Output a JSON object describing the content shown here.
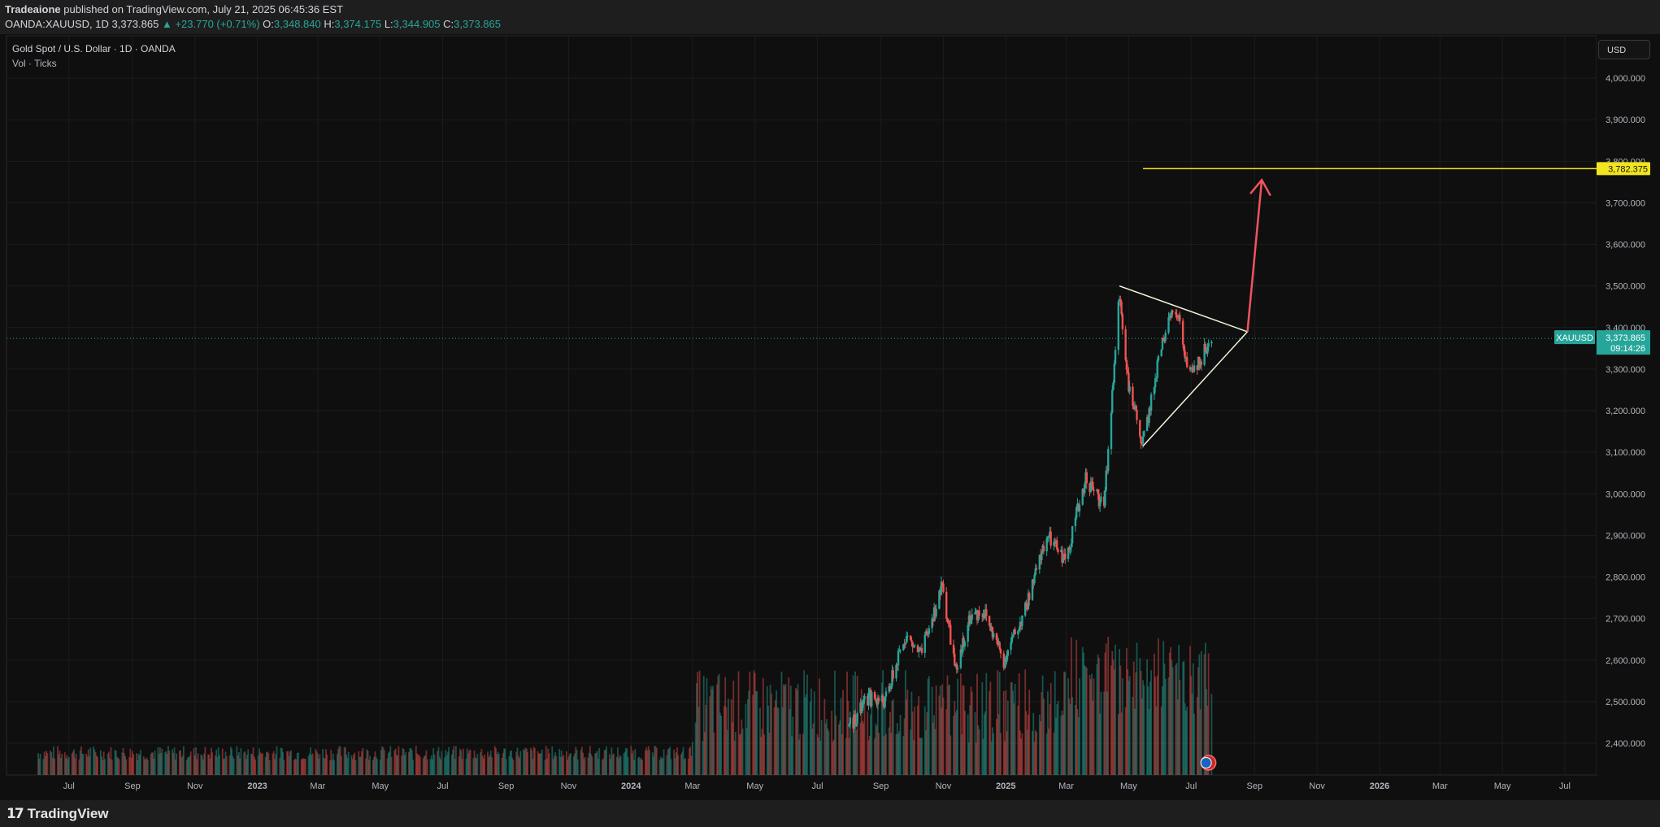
{
  "header": {
    "publisher": "Tradeaione",
    "published_text": "published on TradingView.com, July 21, 2025 06:45:36 EST",
    "symbol_line": {
      "symbol": "OANDA:XAUUSD, 1D",
      "last": "3,373.865",
      "change": "▲ +23.770 (+0.71%)",
      "o_label": "O:",
      "o": "3,348.840",
      "h_label": "H:",
      "h": "3,374.175",
      "l_label": "L:",
      "l": "3,344.905",
      "c_label": "C:",
      "c": "3,373.865"
    }
  },
  "legend": {
    "title": "Gold Spot / U.S. Dollar · 1D · OANDA",
    "volume": "Vol · Ticks"
  },
  "currency_button": "USD",
  "price_tags": {
    "target": {
      "value": "3,782.375",
      "color": "#f2e41e"
    },
    "symbol": "XAUUSD",
    "last": "3,373.865",
    "countdown": "09:14:26"
  },
  "footer": {
    "logo_text": "TradingView",
    "logo_mark": "17"
  },
  "colors": {
    "up": "#26a69a",
    "down": "#ef5350",
    "target_line": "#f2e41e",
    "arrow": "#f0545e",
    "triangle": "#f4f6d8",
    "axis_text": "#b2b5be",
    "grid": "#1c1c1c"
  },
  "chart_data": {
    "type": "candlestick",
    "symbol": "XAUUSD",
    "timeframe": "1D",
    "y_ticks": [
      2400,
      2500,
      2600,
      2700,
      2800,
      2900,
      3000,
      3100,
      3200,
      3300,
      3400,
      3500,
      3600,
      3700,
      3800,
      3900,
      4000
    ],
    "y_tick_labels": [
      "2,400.000",
      "2,500.000",
      "2,600.000",
      "2,700.000",
      "2,800.000",
      "2,900.000",
      "3,000.000",
      "3,100.000",
      "3,200.000",
      "3,300.000",
      "3,400.000",
      "3,500.000",
      "3,600.000",
      "3,700.000",
      "3,800.000",
      "3,900.000",
      "4,000.000"
    ],
    "x_ticks": [
      {
        "label": "Jul",
        "date": "2022-07-01"
      },
      {
        "label": "Sep",
        "date": "2022-09-01"
      },
      {
        "label": "Nov",
        "date": "2022-11-01"
      },
      {
        "label": "2023",
        "date": "2023-01-01"
      },
      {
        "label": "Mar",
        "date": "2023-03-01"
      },
      {
        "label": "May",
        "date": "2023-05-01"
      },
      {
        "label": "Jul",
        "date": "2023-07-01"
      },
      {
        "label": "Sep",
        "date": "2023-09-01"
      },
      {
        "label": "Nov",
        "date": "2023-11-01"
      },
      {
        "label": "2024",
        "date": "2024-01-01"
      },
      {
        "label": "Mar",
        "date": "2024-03-01"
      },
      {
        "label": "May",
        "date": "2024-05-01"
      },
      {
        "label": "Jul",
        "date": "2024-07-01"
      },
      {
        "label": "Sep",
        "date": "2024-09-01"
      },
      {
        "label": "Nov",
        "date": "2024-11-01"
      },
      {
        "label": "2025",
        "date": "2025-01-01"
      },
      {
        "label": "Mar",
        "date": "2025-03-01"
      },
      {
        "label": "May",
        "date": "2025-05-01"
      },
      {
        "label": "Jul",
        "date": "2025-07-01"
      },
      {
        "label": "Sep",
        "date": "2025-09-01"
      },
      {
        "label": "Nov",
        "date": "2025-11-01"
      },
      {
        "label": "2026",
        "date": "2026-01-01"
      },
      {
        "label": "Mar",
        "date": "2026-03-01"
      },
      {
        "label": "May",
        "date": "2026-05-01"
      },
      {
        "label": "Jul",
        "date": "2026-07-01"
      }
    ],
    "price_path": [
      [
        "2024-08-01",
        2440
      ],
      [
        "2024-08-20",
        2510
      ],
      [
        "2024-09-05",
        2500
      ],
      [
        "2024-09-25",
        2660
      ],
      [
        "2024-10-10",
        2610
      ],
      [
        "2024-10-31",
        2780
      ],
      [
        "2024-11-14",
        2560
      ],
      [
        "2024-11-25",
        2700
      ],
      [
        "2024-12-10",
        2720
      ],
      [
        "2024-12-30",
        2600
      ],
      [
        "2025-01-20",
        2720
      ],
      [
        "2025-02-10",
        2900
      ],
      [
        "2025-02-28",
        2840
      ],
      [
        "2025-03-20",
        3040
      ],
      [
        "2025-04-07",
        2970
      ],
      [
        "2025-04-22",
        3480
      ],
      [
        "2025-05-02",
        3240
      ],
      [
        "2025-05-15",
        3120
      ],
      [
        "2025-06-03",
        3370
      ],
      [
        "2025-06-16",
        3450
      ],
      [
        "2025-06-30",
        3280
      ],
      [
        "2025-07-21",
        3374
      ]
    ],
    "last": 3373.865,
    "target_level": 3782.375,
    "drawings": {
      "triangle": {
        "upper_line": [
          [
            "2025-04-22",
            3500
          ],
          [
            "2025-08-25",
            3390
          ]
        ],
        "lower_line": [
          [
            "2025-05-15",
            3115
          ],
          [
            "2025-08-25",
            3390
          ]
        ]
      },
      "arrow": {
        "from": [
          "2025-08-25",
          3390
        ],
        "to": [
          "2025-09-08",
          3755
        ]
      },
      "target_line": {
        "from": "2025-05-15",
        "level": 3782.375
      }
    }
  }
}
